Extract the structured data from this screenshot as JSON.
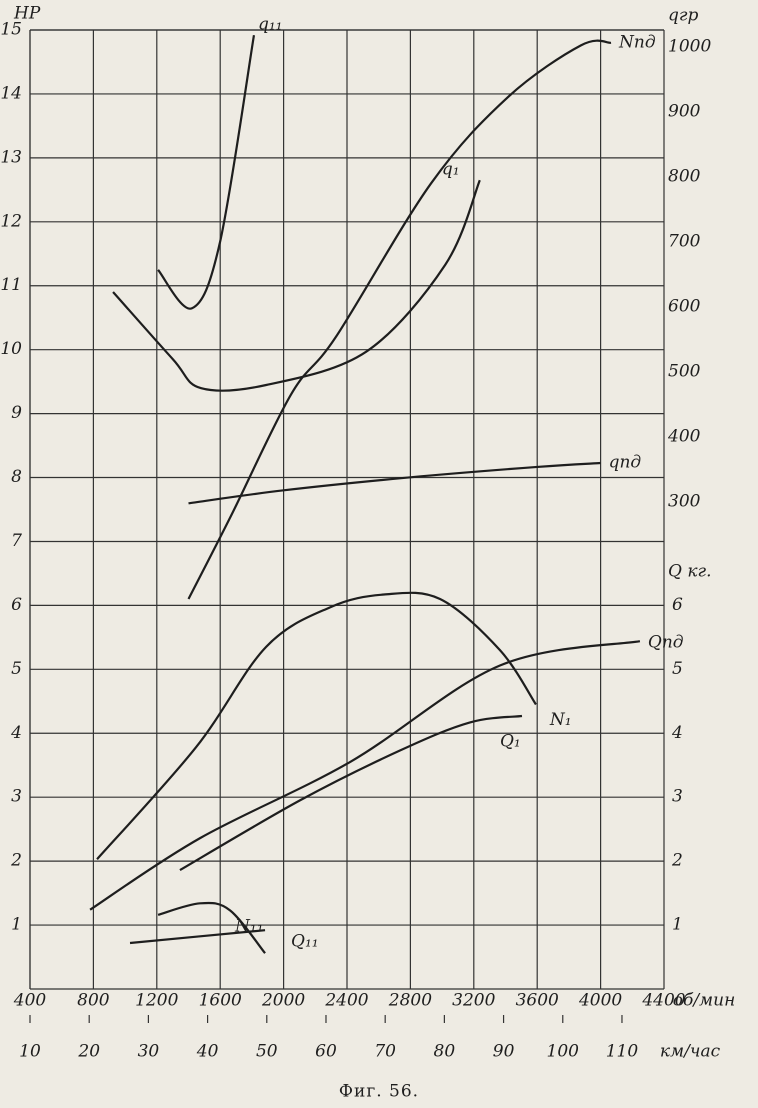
{
  "chart_data": {
    "type": "line",
    "caption": "Фиг. 56.",
    "ylabel": "HP",
    "y2label": "qгр",
    "y3label": "Q кг.",
    "xlabel": "об/мин",
    "x2label": "км/час",
    "xlim": [
      400,
      4400
    ],
    "xticks": [
      400,
      800,
      1200,
      1600,
      2000,
      2400,
      2800,
      3200,
      3600,
      4000,
      4400
    ],
    "x2lim": [
      10,
      117.1
    ],
    "x2ticks": [
      10,
      20,
      30,
      40,
      50,
      60,
      70,
      80,
      90,
      100,
      110
    ],
    "ylim": [
      0,
      15
    ],
    "yticks": [
      1,
      2,
      3,
      4,
      5,
      6,
      7,
      8,
      9,
      10,
      11,
      12,
      13,
      14,
      15
    ],
    "y2lim": [
      -449,
      1026
    ],
    "y2ticks": [
      300,
      400,
      500,
      600,
      700,
      800,
      900,
      1000
    ],
    "y3lim": [
      0,
      15
    ],
    "y3ticks": [
      1,
      2,
      3,
      4,
      5,
      6
    ],
    "grid": true,
    "color": "#1e1e1e",
    "series": [
      {
        "name": "Nпд",
        "x": [
          1400,
          1668,
          2047,
          2330,
          2930,
          3415,
          3876,
          4066
        ],
        "values": [
          6.1,
          7.4,
          9.3,
          10.2,
          12.6,
          13.95,
          14.76,
          14.8
        ]
      },
      {
        "name": "q₁",
        "axis": "y2",
        "x": [
          924,
          1300,
          1480,
          1890,
          2520,
          3020,
          3238
        ],
        "values": [
          623,
          520,
          475,
          480,
          531,
          665,
          795
        ]
      },
      {
        "name": "q₁₁",
        "axis": "y2",
        "x": [
          1208,
          1422,
          1599,
          1813
        ],
        "values": [
          657,
          598,
          700,
          1018
        ]
      },
      {
        "name": "qпд",
        "axis": "y2",
        "x": [
          1400,
          2000,
          2800,
          3600,
          4000
        ],
        "values": [
          298,
          318,
          338,
          354,
          360
        ]
      },
      {
        "name": "N₁",
        "x": [
          823,
          1447,
          1889,
          2293,
          2633,
          2987,
          3365,
          3592
        ],
        "values": [
          2.03,
          3.78,
          5.35,
          5.97,
          6.17,
          6.1,
          5.3,
          4.45
        ]
      },
      {
        "name": "Qпд",
        "axis": "y3",
        "x": [
          779,
          1473,
          2419,
          3365,
          4248
        ],
        "values": [
          1.24,
          2.36,
          3.55,
          5.06,
          5.44
        ]
      },
      {
        "name": "Q₁",
        "axis": "y3",
        "x": [
          1346,
          2103,
          2734,
          3176,
          3504
        ],
        "values": [
          1.86,
          2.95,
          3.73,
          4.17,
          4.27
        ]
      },
      {
        "name": "N₁₁",
        "x": [
          1208,
          1473,
          1662,
          1883
        ],
        "values": [
          1.16,
          1.34,
          1.23,
          0.56
        ]
      },
      {
        "name": "Q₁₁",
        "axis": "y3",
        "x": [
          1031,
          1883
        ],
        "values": [
          0.72,
          0.92
        ]
      }
    ]
  }
}
